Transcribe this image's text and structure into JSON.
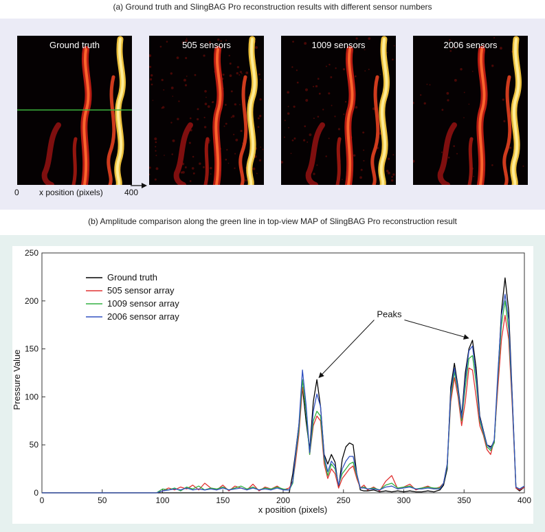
{
  "figure": {
    "caption_a": "(a) Ground truth and SlingBAG Pro reconstruction results with different sensor numbers",
    "caption_b": "(b) Amplitude comparison along the green line in top-view MAP of SlingBAG Pro reconstruction result"
  },
  "thumbnails": [
    {
      "label": "Ground truth",
      "noise": 0.0
    },
    {
      "label": "505 sensors",
      "noise": 0.35
    },
    {
      "label": "1009 sensors",
      "noise": 0.2
    },
    {
      "label": "2006 sensors",
      "noise": 0.1
    }
  ],
  "thumb_axis": {
    "start": "0",
    "end": "400",
    "label": "x position (pixels)",
    "line_color": "#3cb43c"
  },
  "chart_data": {
    "type": "line",
    "xlabel": "x position (pixels)",
    "ylabel": "Pressure Value",
    "xlim": [
      0,
      400
    ],
    "ylim": [
      0,
      250
    ],
    "xticks": [
      0,
      50,
      100,
      150,
      200,
      250,
      300,
      350,
      400
    ],
    "yticks": [
      0,
      50,
      100,
      150,
      200,
      250
    ],
    "grid": false,
    "legend_position": "top-left",
    "annotation": {
      "text": "Peaks",
      "targets": [
        [
          228,
          118
        ],
        [
          356,
          159
        ]
      ],
      "label_at": [
        288,
        183
      ]
    },
    "x": [
      0,
      95,
      100,
      105,
      110,
      115,
      120,
      125,
      130,
      135,
      140,
      145,
      150,
      155,
      160,
      165,
      170,
      175,
      180,
      185,
      190,
      195,
      200,
      205,
      208,
      210,
      213,
      216,
      219,
      222,
      225,
      228,
      231,
      234,
      237,
      240,
      243,
      246,
      249,
      252,
      255,
      258,
      261,
      264,
      267,
      270,
      275,
      280,
      285,
      290,
      295,
      300,
      305,
      310,
      315,
      320,
      325,
      330,
      333,
      336,
      339,
      342,
      345,
      348,
      351,
      354,
      357,
      360,
      363,
      366,
      369,
      372,
      375,
      378,
      381,
      384,
      387,
      390,
      393,
      396,
      400
    ],
    "series": [
      {
        "name": "Ground truth",
        "color": "#000000",
        "values": [
          0,
          0,
          0,
          0,
          0,
          0,
          0,
          0,
          0,
          0,
          0,
          0,
          0,
          0,
          0,
          0,
          0,
          0,
          0,
          0,
          0,
          0,
          0,
          0,
          20,
          40,
          70,
          110,
          75,
          45,
          95,
          118,
          90,
          40,
          30,
          40,
          32,
          5,
          35,
          48,
          52,
          50,
          20,
          3,
          2,
          2,
          3,
          1,
          2,
          1,
          2,
          1,
          2,
          1,
          1,
          2,
          1,
          3,
          8,
          25,
          110,
          135,
          110,
          80,
          125,
          150,
          159,
          130,
          80,
          65,
          50,
          48,
          52,
          120,
          190,
          224,
          190,
          100,
          5,
          2,
          6
        ]
      },
      {
        "name": "505 sensor array",
        "color": "#e03030",
        "values": [
          0,
          0,
          2,
          5,
          3,
          6,
          4,
          8,
          3,
          10,
          5,
          3,
          8,
          2,
          7,
          5,
          3,
          9,
          2,
          6,
          4,
          7,
          3,
          5,
          12,
          30,
          60,
          110,
          90,
          40,
          70,
          80,
          75,
          30,
          15,
          25,
          20,
          5,
          15,
          20,
          25,
          28,
          15,
          5,
          8,
          3,
          6,
          2,
          12,
          18,
          4,
          6,
          9,
          3,
          5,
          7,
          4,
          6,
          10,
          30,
          95,
          120,
          100,
          70,
          95,
          130,
          128,
          100,
          70,
          60,
          45,
          40,
          55,
          110,
          160,
          185,
          160,
          90,
          5,
          3,
          6
        ]
      },
      {
        "name": "1009 sensor array",
        "color": "#30b040",
        "values": [
          0,
          0,
          4,
          3,
          5,
          2,
          6,
          4,
          7,
          3,
          5,
          4,
          6,
          3,
          5,
          7,
          4,
          6,
          3,
          5,
          4,
          6,
          4,
          3,
          10,
          35,
          65,
          118,
          85,
          40,
          75,
          85,
          80,
          35,
          18,
          30,
          25,
          8,
          20,
          25,
          30,
          32,
          18,
          5,
          6,
          4,
          5,
          3,
          8,
          10,
          5,
          6,
          7,
          4,
          5,
          6,
          5,
          5,
          10,
          28,
          100,
          126,
          105,
          75,
          110,
          140,
          143,
          115,
          75,
          62,
          48,
          44,
          52,
          120,
          175,
          200,
          170,
          95,
          6,
          4,
          7
        ]
      },
      {
        "name": "2006 sensor array",
        "color": "#3050c0",
        "values": [
          0,
          0,
          2,
          3,
          4,
          3,
          5,
          3,
          4,
          3,
          4,
          3,
          5,
          3,
          4,
          5,
          3,
          5,
          3,
          4,
          3,
          5,
          3,
          3,
          12,
          38,
          70,
          128,
          92,
          42,
          85,
          103,
          90,
          38,
          22,
          33,
          28,
          8,
          25,
          33,
          38,
          38,
          20,
          5,
          5,
          4,
          4,
          3,
          6,
          7,
          4,
          5,
          6,
          4,
          4,
          5,
          4,
          4,
          10,
          30,
          105,
          130,
          108,
          78,
          118,
          148,
          153,
          122,
          78,
          64,
          50,
          46,
          55,
          125,
          185,
          207,
          180,
          98,
          6,
          4,
          7
        ]
      }
    ]
  }
}
